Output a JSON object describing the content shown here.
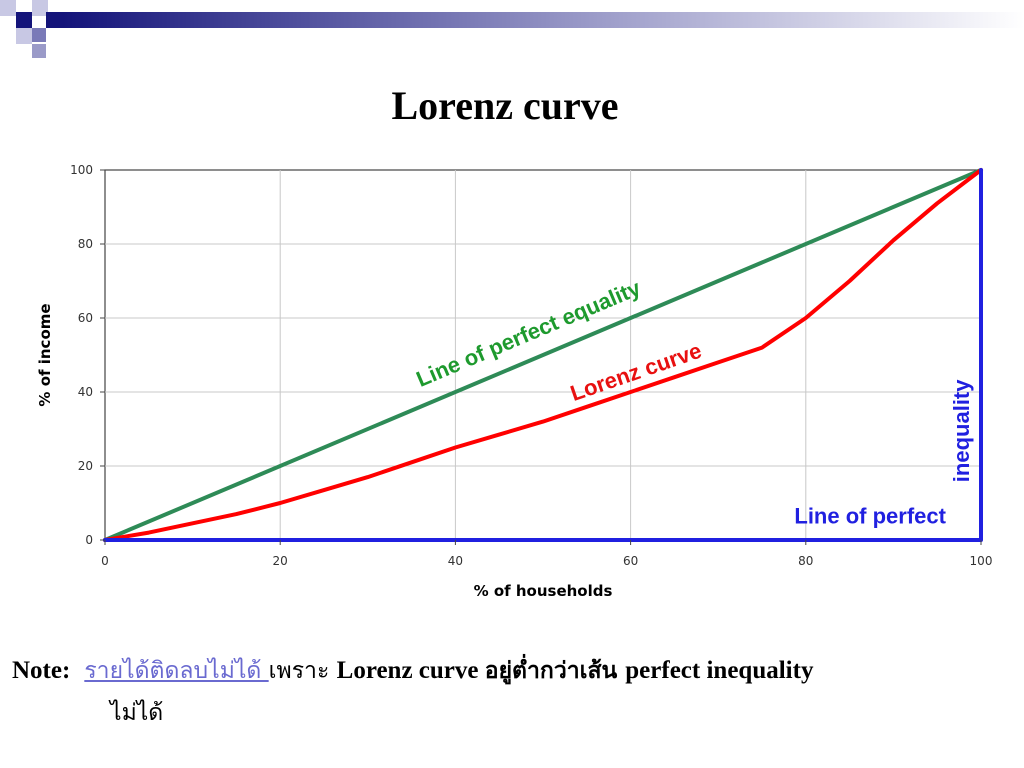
{
  "slide": {
    "title": "Lorenz curve",
    "banner_colors": {
      "dark": "#14147a",
      "mid": "#7a7ab8",
      "light": "#c8c8e4"
    }
  },
  "chart_data": {
    "type": "line",
    "title": "",
    "xlabel": "% of households",
    "ylabel": "% of income",
    "xlim": [
      0,
      100
    ],
    "ylim": [
      0,
      100
    ],
    "xticks": [
      0,
      20,
      40,
      60,
      80,
      100
    ],
    "yticks": [
      0,
      20,
      40,
      60,
      80,
      100
    ],
    "grid": true,
    "series": [
      {
        "name": "Line of perfect equality",
        "color": "#2e8b57",
        "x": [
          0,
          100
        ],
        "y": [
          0,
          100
        ]
      },
      {
        "name": "Lorenz curve",
        "color": "#ff0000",
        "x": [
          0,
          5,
          10,
          15,
          20,
          25,
          30,
          35,
          40,
          45,
          50,
          55,
          60,
          65,
          70,
          75,
          80,
          85,
          90,
          95,
          100
        ],
        "y": [
          0,
          2,
          4.5,
          7,
          10,
          13.5,
          17,
          21,
          25,
          28.5,
          32,
          36,
          40,
          44,
          48,
          52,
          60,
          70,
          81,
          91,
          100
        ]
      },
      {
        "name": "Line of perfect inequality",
        "color": "#2020e0",
        "x": [
          0,
          100,
          100
        ],
        "y": [
          0,
          0,
          100
        ]
      }
    ],
    "annotations": {
      "equality": "Line of perfect equality",
      "lorenz": "Lorenz curve",
      "inequality_a": "Line of perfect",
      "inequality_b": "inequality"
    }
  },
  "note": {
    "label": "Note:",
    "link_text": "รายได้ติดลบไม่ได้ ",
    "thai_because": "เพราะ ",
    "english_1": "Lorenz curve ",
    "thai_below": "อยู่ต่ำกว่าเส้น ",
    "english_2": "perfect inequality",
    "line2": "ไม่ได้"
  }
}
